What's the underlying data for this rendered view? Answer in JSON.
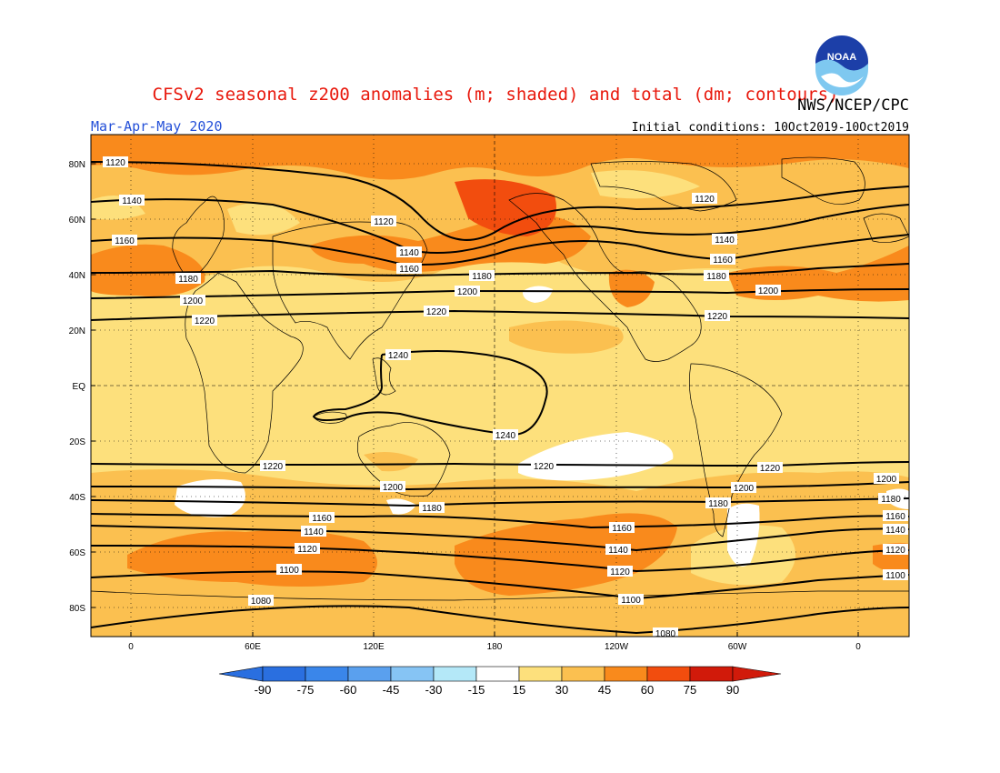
{
  "title": "CFSv2 seasonal z200 anomalies (m; shaded) and total (dm; contours)",
  "season": "Mar-Apr-May 2020",
  "credit": "NWS/NCEP/CPC",
  "initial_conditions": "Initial conditions: 10Oct2019-10Oct2019",
  "logo_text": "NOAA",
  "colors": {
    "title": "#e8180c",
    "season": "#2450d8",
    "c15_30": "#fde07c",
    "c30_45": "#fbc050",
    "c45_60": "#f98a1c",
    "c60_75": "#f24d0e",
    "c75_90": "#d11a0a"
  },
  "lat_labels": [
    "80N",
    "60N",
    "40N",
    "20N",
    "EQ",
    "20S",
    "40S",
    "60S",
    "80S"
  ],
  "lon_labels": [
    "0",
    "60E",
    "120E",
    "180",
    "120W",
    "60W",
    "0"
  ],
  "colorbar": {
    "labels": [
      "-90",
      "-75",
      "-60",
      "-45",
      "-30",
      "-15",
      "15",
      "30",
      "45",
      "60",
      "75",
      "90"
    ],
    "colors": [
      "#2a6fe0",
      "#3a86ea",
      "#5aa0ee",
      "#86c4f4",
      "#b4e8f8",
      "#ffffff",
      "#fde07c",
      "#fbc050",
      "#f98a1c",
      "#f24d0e",
      "#d11a0a"
    ]
  },
  "contour_labels": [
    "1120",
    "1140",
    "1160",
    "1180",
    "1200",
    "1220",
    "1240",
    "1220",
    "1200",
    "1180",
    "1160",
    "1140",
    "1120",
    "1100",
    "1080",
    "1120",
    "1140",
    "1160",
    "1180",
    "1200",
    "1220",
    "1120",
    "1140",
    "1160",
    "1180",
    "1200",
    "1220",
    "1240",
    "1220",
    "1200",
    "1180",
    "1160",
    "1140",
    "1120",
    "1100",
    "1220",
    "1200",
    "1180",
    "1160",
    "1140",
    "1120",
    "1100",
    "1080"
  ]
}
